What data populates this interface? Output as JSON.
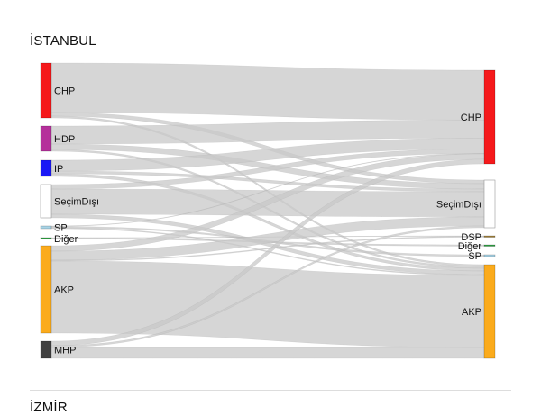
{
  "sections": [
    {
      "title": "İSTANBUL"
    },
    {
      "title": "İZMİR"
    }
  ],
  "sankey": {
    "left_nodes": [
      {
        "id": "CHP",
        "label": "CHP",
        "color": "#f5191b"
      },
      {
        "id": "HDP",
        "label": "HDP",
        "color": "#b5309b"
      },
      {
        "id": "IP",
        "label": "IP",
        "color": "#1a18f5"
      },
      {
        "id": "SD",
        "label": "SeçimDışı",
        "color": "#ffffff"
      },
      {
        "id": "SP",
        "label": "SP",
        "color": "#a8d4e6"
      },
      {
        "id": "DG",
        "label": "Diğer",
        "color": "#2ea043"
      },
      {
        "id": "AKP",
        "label": "AKP",
        "color": "#fbab1c"
      },
      {
        "id": "MHP",
        "label": "MHP",
        "color": "#404040"
      }
    ],
    "right_nodes": [
      {
        "id": "CHP",
        "label": "CHP",
        "color": "#f5191b"
      },
      {
        "id": "SD",
        "label": "SeçimDışı",
        "color": "#ffffff"
      },
      {
        "id": "DSP",
        "label": "DSP",
        "color": "#a0803a"
      },
      {
        "id": "DG",
        "label": "Diğer",
        "color": "#2ea043"
      },
      {
        "id": "SP",
        "label": "SP",
        "color": "#a8d4e6"
      },
      {
        "id": "AKP",
        "label": "AKP",
        "color": "#fbab1c"
      }
    ],
    "links": [
      {
        "source": "CHP",
        "target": "CHP",
        "value": 55
      },
      {
        "source": "CHP",
        "target": "SD",
        "value": 4
      },
      {
        "source": "CHP",
        "target": "AKP",
        "value": 2
      },
      {
        "source": "HDP",
        "target": "CHP",
        "value": 20
      },
      {
        "source": "HDP",
        "target": "SD",
        "value": 6
      },
      {
        "source": "HDP",
        "target": "AKP",
        "value": 2
      },
      {
        "source": "IP",
        "target": "CHP",
        "value": 12
      },
      {
        "source": "IP",
        "target": "SD",
        "value": 3
      },
      {
        "source": "IP",
        "target": "AKP",
        "value": 3
      },
      {
        "source": "SD",
        "target": "CHP",
        "value": 5
      },
      {
        "source": "SD",
        "target": "SD",
        "value": 28
      },
      {
        "source": "SD",
        "target": "AKP",
        "value": 4
      },
      {
        "source": "SP",
        "target": "CHP",
        "value": 0.5
      },
      {
        "source": "SP",
        "target": "SP",
        "value": 1.5
      },
      {
        "source": "SP",
        "target": "AKP",
        "value": 1
      },
      {
        "source": "DG",
        "target": "DSP",
        "value": 0.5
      },
      {
        "source": "DG",
        "target": "DG",
        "value": 1
      },
      {
        "source": "AKP",
        "target": "CHP",
        "value": 6
      },
      {
        "source": "AKP",
        "target": "SD",
        "value": 10
      },
      {
        "source": "AKP",
        "target": "DSP",
        "value": 1
      },
      {
        "source": "AKP",
        "target": "AKP",
        "value": 80
      },
      {
        "source": "MHP",
        "target": "CHP",
        "value": 5
      },
      {
        "source": "MHP",
        "target": "SD",
        "value": 2
      },
      {
        "source": "MHP",
        "target": "AKP",
        "value": 12
      }
    ],
    "link_color": "#c8c8c8"
  }
}
